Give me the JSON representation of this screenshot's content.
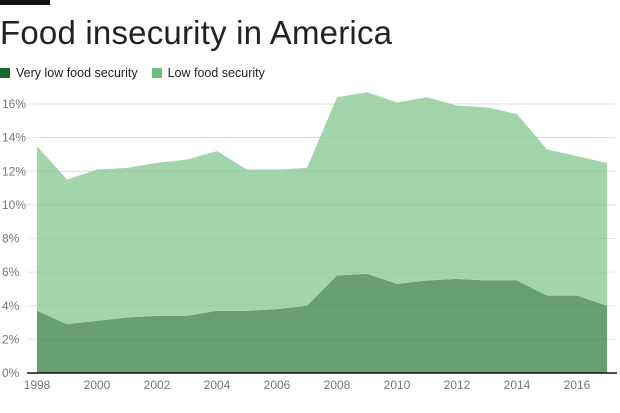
{
  "title": "Food insecurity in America",
  "chart_data": {
    "type": "area",
    "stacked": true,
    "title": "Food insecurity in America",
    "xlabel": "",
    "ylabel": "",
    "x": [
      1998,
      1999,
      2000,
      2001,
      2002,
      2003,
      2004,
      2005,
      2006,
      2007,
      2008,
      2009,
      2010,
      2011,
      2012,
      2013,
      2014,
      2015,
      2016,
      2017
    ],
    "series": [
      {
        "name": "Very low food security",
        "color": "#679e72",
        "legend_color": "#17692a",
        "values": [
          3.7,
          2.9,
          3.1,
          3.3,
          3.4,
          3.4,
          3.7,
          3.7,
          3.8,
          4.0,
          5.8,
          5.9,
          5.3,
          5.5,
          5.6,
          5.5,
          5.5,
          4.6,
          4.6,
          4.0
        ]
      },
      {
        "name": "Low food security",
        "color": "#a3d5ab",
        "legend_color": "#6cbf7b",
        "values": [
          9.8,
          8.6,
          9.0,
          8.9,
          9.1,
          9.3,
          9.5,
          8.4,
          8.3,
          8.2,
          10.6,
          10.8,
          10.8,
          10.9,
          10.3,
          10.3,
          9.9,
          8.7,
          8.3,
          8.5
        ]
      }
    ],
    "ylim": [
      0,
      16
    ],
    "xlim": [
      1998,
      2017
    ],
    "yticks": [
      "0%",
      "2%",
      "4%",
      "6%",
      "8%",
      "10%",
      "12%",
      "14%",
      "16%"
    ],
    "xticks": [
      "1998",
      "2000",
      "2002",
      "2004",
      "2006",
      "2008",
      "2010",
      "2012",
      "2014",
      "2016"
    ],
    "grid": true,
    "legend_position": "top-left"
  }
}
